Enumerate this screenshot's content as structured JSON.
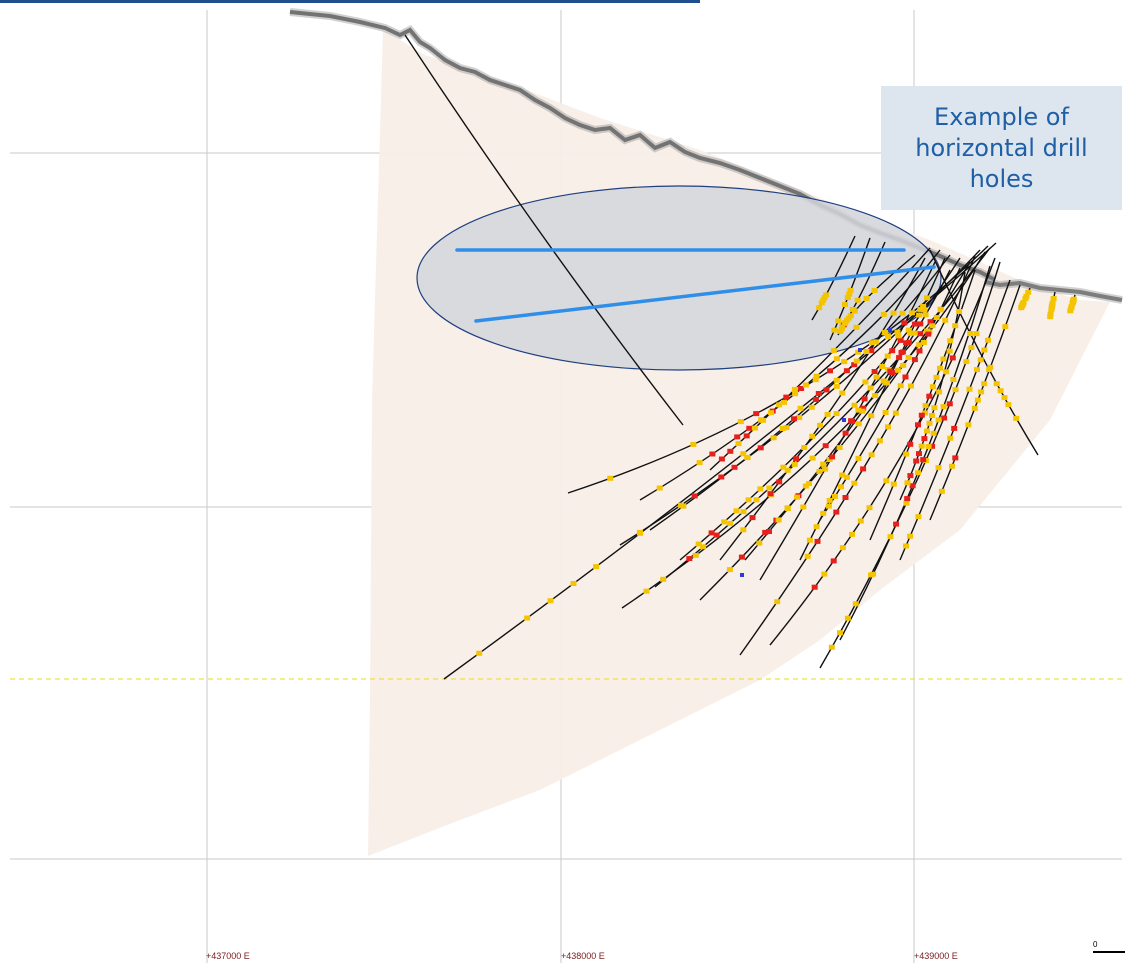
{
  "callout": {
    "text": "Example of\nhorizontal drill\nholes"
  },
  "axis": {
    "easting_labels": [
      "+437000 E",
      "+438000 E",
      "+439000 E"
    ]
  },
  "scale_bar": {
    "zero_label": "0"
  },
  "colors": {
    "grid": "#c8c8c8",
    "section_fill": "#f8eee8",
    "drill_trace": "#111111",
    "high_grade": "#e8201c",
    "medium_grade": "#f5c400",
    "other_assay": "#2a3bd8",
    "highlight_ellipse_fill": "#d3d6dc",
    "highlight_ellipse_stroke": "#1f3f80",
    "highlight_line": "#2f8fe8",
    "reference_dashed": "#f0e040",
    "label_text": "#7a2020",
    "callout_text": "#1f5fa6",
    "callout_background": "#dde6ef"
  }
}
